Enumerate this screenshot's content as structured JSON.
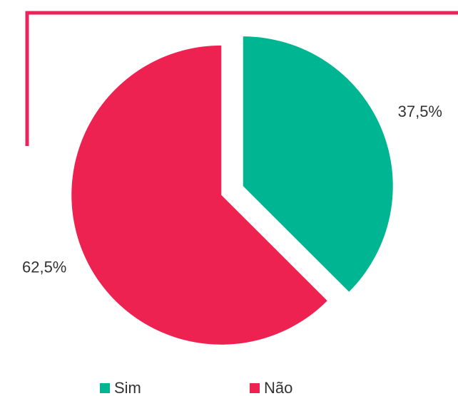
{
  "chart_data": {
    "type": "pie",
    "categories": [
      "Sim",
      "Não"
    ],
    "values": [
      37.5,
      62.5
    ],
    "value_labels": [
      "37,5%",
      "62,5%"
    ],
    "colors": [
      "#00b692",
      "#ee2251"
    ],
    "legend": "bottom"
  }
}
